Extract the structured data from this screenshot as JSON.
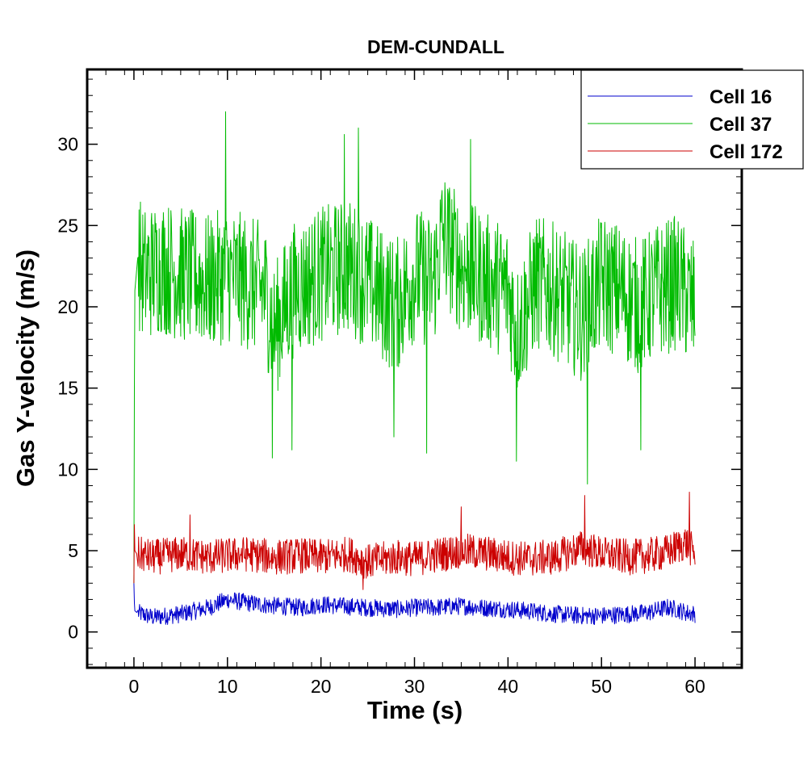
{
  "chart_data": {
    "type": "line",
    "title": "DEM-CUNDALL",
    "xlabel": "Time (s)",
    "ylabel": "Gas Y-velocity (m/s)",
    "xlim": [
      -5,
      65
    ],
    "ylim": [
      -2.2,
      34.6
    ],
    "xticks": [
      0,
      10,
      20,
      30,
      40,
      50,
      60
    ],
    "yticks": [
      0,
      5,
      10,
      15,
      20,
      25,
      30
    ],
    "legend_position": "top-right",
    "series": [
      {
        "name": "Cell 16",
        "color": "#0000cc",
        "x": [
          0,
          0.05,
          0.1,
          0.3,
          2,
          5,
          8,
          10,
          12,
          15,
          18,
          20,
          22,
          25,
          28,
          30,
          32,
          35,
          37,
          40,
          42,
          45,
          48,
          50,
          53,
          55,
          57,
          58,
          59,
          60
        ],
        "values": [
          3.0,
          1.8,
          1.3,
          1.2,
          0.9,
          1.1,
          1.5,
          2.0,
          1.8,
          1.6,
          1.5,
          1.7,
          1.6,
          1.5,
          1.4,
          1.5,
          1.5,
          1.6,
          1.5,
          1.4,
          1.3,
          1.1,
          1.0,
          1.0,
          1.1,
          1.2,
          1.5,
          1.4,
          1.2,
          1.1
        ],
        "noise": 0.55
      },
      {
        "name": "Cell 37",
        "color": "#00bb00",
        "x": [
          0,
          0.05,
          0.1,
          0.4,
          1,
          3,
          5,
          8,
          10,
          12,
          14,
          15,
          17,
          20,
          23,
          25,
          28,
          30,
          32,
          33,
          35,
          38,
          40,
          41,
          43,
          45,
          48,
          50,
          52,
          54,
          56,
          58,
          60
        ],
        "values": [
          3.0,
          15.0,
          21.0,
          23.0,
          22.0,
          22.5,
          22.0,
          21.5,
          22.0,
          21.5,
          21.0,
          18.5,
          21.0,
          22.0,
          22.5,
          21.5,
          20.0,
          22.0,
          21.5,
          24.5,
          22.5,
          21.5,
          21.0,
          18.5,
          21.5,
          21.0,
          19.5,
          21.5,
          21.0,
          20.0,
          21.0,
          21.5,
          20.0
        ],
        "noise": 4.2,
        "extremes": [
          [
            9.8,
            32.0
          ],
          [
            14.8,
            10.7
          ],
          [
            16.9,
            11.2
          ],
          [
            22.5,
            30.6
          ],
          [
            24.0,
            31.0
          ],
          [
            27.8,
            12.0
          ],
          [
            31.3,
            11.0
          ],
          [
            40.9,
            10.5
          ],
          [
            48.5,
            9.1
          ],
          [
            54.2,
            11.2
          ],
          [
            36.0,
            30.3
          ]
        ]
      },
      {
        "name": "Cell 172",
        "color": "#cc0000",
        "x": [
          0,
          0.05,
          0.1,
          0.3,
          2,
          5,
          8,
          10,
          12,
          15,
          18,
          20,
          23,
          25,
          28,
          30,
          32,
          35,
          38,
          40,
          42,
          45,
          48,
          50,
          53,
          55,
          57,
          59,
          60
        ],
        "values": [
          3.0,
          6.6,
          5.0,
          4.8,
          4.6,
          4.8,
          4.6,
          4.7,
          4.8,
          4.6,
          4.7,
          4.6,
          4.8,
          4.3,
          4.6,
          4.5,
          4.7,
          5.0,
          4.8,
          4.6,
          4.5,
          4.6,
          5.2,
          4.8,
          4.6,
          4.7,
          4.9,
          5.5,
          4.8
        ],
        "noise": 1.1,
        "extremes": [
          [
            48.2,
            8.4
          ],
          [
            59.4,
            8.6
          ],
          [
            35.0,
            7.7
          ],
          [
            6.0,
            7.2
          ],
          [
            24.5,
            2.6
          ]
        ]
      }
    ]
  }
}
